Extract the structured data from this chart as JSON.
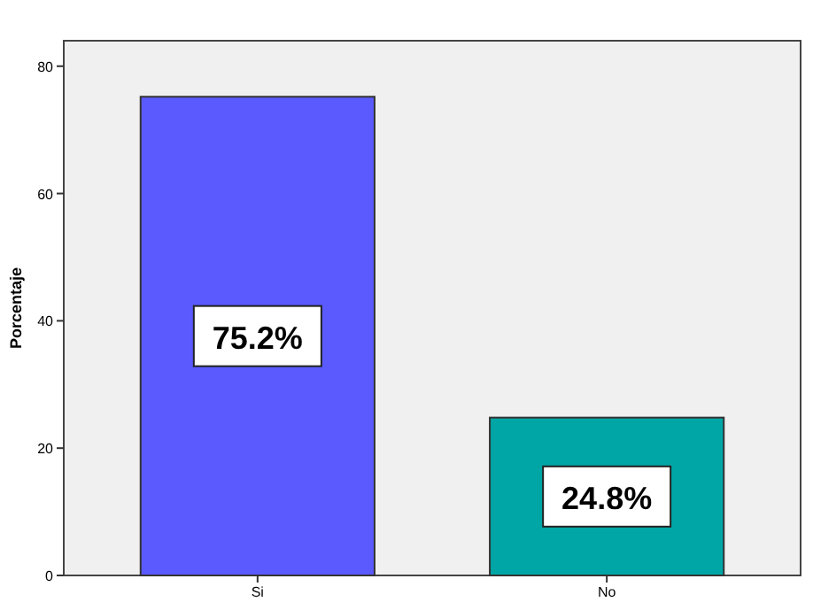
{
  "chart_data": {
    "type": "bar",
    "ylabel": "Porcentaje",
    "categories": [
      "Si",
      "No"
    ],
    "values": [
      75.2,
      24.8
    ],
    "colors": [
      "#5a5aff",
      "#00a6a6"
    ],
    "value_labels": [
      "75.2%",
      "24.8%"
    ],
    "ylim": [
      0,
      84
    ],
    "yticks": [
      0,
      20,
      40,
      60,
      80
    ],
    "grid": false
  }
}
